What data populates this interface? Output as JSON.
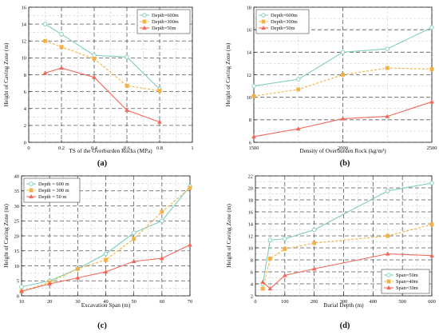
{
  "chart_data": [
    {
      "type": "line",
      "panel_label": "(a)",
      "xlabel": "TS of the Overburden Rocks (MPa)",
      "ylabel": "Height of Caving Zone (m)",
      "xlim": [
        0,
        1
      ],
      "ylim": [
        0,
        16
      ],
      "xticks": [
        0,
        0.2,
        0.4,
        0.6,
        0.8,
        1
      ],
      "xtick_labels": [
        "0",
        "0.2",
        "0.4",
        "0.6",
        "0.8",
        "1"
      ],
      "yticks": [
        0,
        2,
        4,
        6,
        8,
        10,
        12,
        14,
        16
      ],
      "grid": true,
      "legend_position": "top-right",
      "series": [
        {
          "name": "Depth=600m",
          "color": "#7fcdbb",
          "marker": "circle",
          "dashed": false,
          "x": [
            0.1,
            0.2,
            0.4,
            0.6,
            0.8
          ],
          "y": [
            14,
            12.8,
            10.3,
            10.1,
            6.3
          ]
        },
        {
          "name": "Depth=300m",
          "color": "#f5b041",
          "marker": "square",
          "dashed": true,
          "x": [
            0.1,
            0.2,
            0.4,
            0.6,
            0.8
          ],
          "y": [
            12,
            11.3,
            9.9,
            6.7,
            6.1
          ]
        },
        {
          "name": "Depth=50m",
          "color": "#f1685b",
          "marker": "triangle",
          "dashed": false,
          "x": [
            0.1,
            0.2,
            0.4,
            0.6,
            0.8
          ],
          "y": [
            8.2,
            8.8,
            7.7,
            3.8,
            2.4
          ]
        }
      ]
    },
    {
      "type": "line",
      "panel_label": "(b)",
      "xlabel": "Density of Overburden Rock (kg/m³)",
      "ylabel": "Height of Caving Zone (m)",
      "xlim": [
        1500,
        2500
      ],
      "ylim": [
        6,
        18
      ],
      "xticks": [
        1500,
        2000,
        2500
      ],
      "xtick_labels": [
        "1500",
        "2000",
        "2500"
      ],
      "yticks": [
        6,
        8,
        10,
        12,
        14,
        16,
        18
      ],
      "grid": true,
      "legend_position": "top-left",
      "series": [
        {
          "name": "Depth=600m",
          "color": "#7fcdbb",
          "marker": "circle",
          "dashed": false,
          "x": [
            1500,
            1750,
            2000,
            2250,
            2500
          ],
          "y": [
            11.0,
            11.6,
            14.0,
            14.3,
            16.2
          ]
        },
        {
          "name": "Depth=300m",
          "color": "#f5b041",
          "marker": "square",
          "dashed": true,
          "x": [
            1500,
            1750,
            2000,
            2250,
            2500
          ],
          "y": [
            10.1,
            10.7,
            12.0,
            12.6,
            12.5
          ]
        },
        {
          "name": "Depth=50m",
          "color": "#f1685b",
          "marker": "triangle",
          "dashed": false,
          "x": [
            1500,
            1750,
            2000,
            2250,
            2500
          ],
          "y": [
            6.5,
            7.2,
            8.1,
            8.3,
            9.6
          ]
        }
      ]
    },
    {
      "type": "line",
      "panel_label": "(c)",
      "xlabel": "Excavation Span (m)",
      "ylabel": "Height of Caving Zone (m)",
      "xlim": [
        10,
        70
      ],
      "ylim": [
        0,
        40
      ],
      "xticks": [
        10,
        20,
        30,
        40,
        50,
        60,
        70
      ],
      "xtick_labels": [
        "10",
        "20",
        "30",
        "40",
        "50",
        "60",
        "70"
      ],
      "yticks": [
        0,
        5,
        10,
        15,
        20,
        25,
        30,
        35,
        40
      ],
      "grid": true,
      "legend_position": "top-left",
      "series": [
        {
          "name": "Depth = 600 m",
          "color": "#7fcdbb",
          "marker": "circle",
          "dashed": false,
          "x": [
            10,
            20,
            30,
            40,
            50,
            60,
            70
          ],
          "y": [
            3.0,
            5.0,
            9.0,
            14.0,
            21.0,
            25.0,
            36.5
          ]
        },
        {
          "name": "Depth = 300 m",
          "color": "#f5b041",
          "marker": "square",
          "dashed": true,
          "x": [
            10,
            20,
            30,
            40,
            50,
            60,
            70
          ],
          "y": [
            1.5,
            4.5,
            9.0,
            12.0,
            19.0,
            28.0,
            36.0
          ]
        },
        {
          "name": "Depth = 50 m",
          "color": "#f1685b",
          "marker": "triangle",
          "dashed": false,
          "x": [
            10,
            20,
            30,
            40,
            50,
            60,
            70
          ],
          "y": [
            1.5,
            4.0,
            6.0,
            8.0,
            11.5,
            12.5,
            17.0
          ]
        }
      ]
    },
    {
      "type": "line",
      "panel_label": "(d)",
      "xlabel": "Burial Depth (m)",
      "ylabel": "Height of Caving Zone (m)",
      "xlim": [
        0,
        600
      ],
      "ylim": [
        2,
        22
      ],
      "xticks": [
        0,
        100,
        200,
        300,
        400,
        500,
        600
      ],
      "xtick_labels": [
        "0",
        "100",
        "200",
        "300",
        "400",
        "500",
        "600"
      ],
      "yticks": [
        2,
        4,
        6,
        8,
        10,
        12,
        14,
        16,
        18,
        20,
        22
      ],
      "grid": true,
      "legend_position": "bottom-right",
      "series": [
        {
          "name": "Span=50m",
          "color": "#7fcdbb",
          "marker": "circle",
          "dashed": false,
          "x": [
            25,
            50,
            100,
            200,
            450,
            600
          ],
          "y": [
            4.0,
            11.3,
            11.5,
            13.0,
            19.5,
            20.8
          ]
        },
        {
          "name": "Span=40m",
          "color": "#f5b041",
          "marker": "square",
          "dashed": true,
          "x": [
            25,
            50,
            100,
            200,
            450,
            600
          ],
          "y": [
            3.2,
            8.2,
            9.8,
            10.8,
            12.0,
            13.9
          ]
        },
        {
          "name": "Span=30m",
          "color": "#f1685b",
          "marker": "triangle",
          "dashed": false,
          "x": [
            25,
            50,
            100,
            200,
            450,
            600
          ],
          "y": [
            4.3,
            3.2,
            5.4,
            6.5,
            9.0,
            8.7
          ]
        }
      ]
    }
  ]
}
